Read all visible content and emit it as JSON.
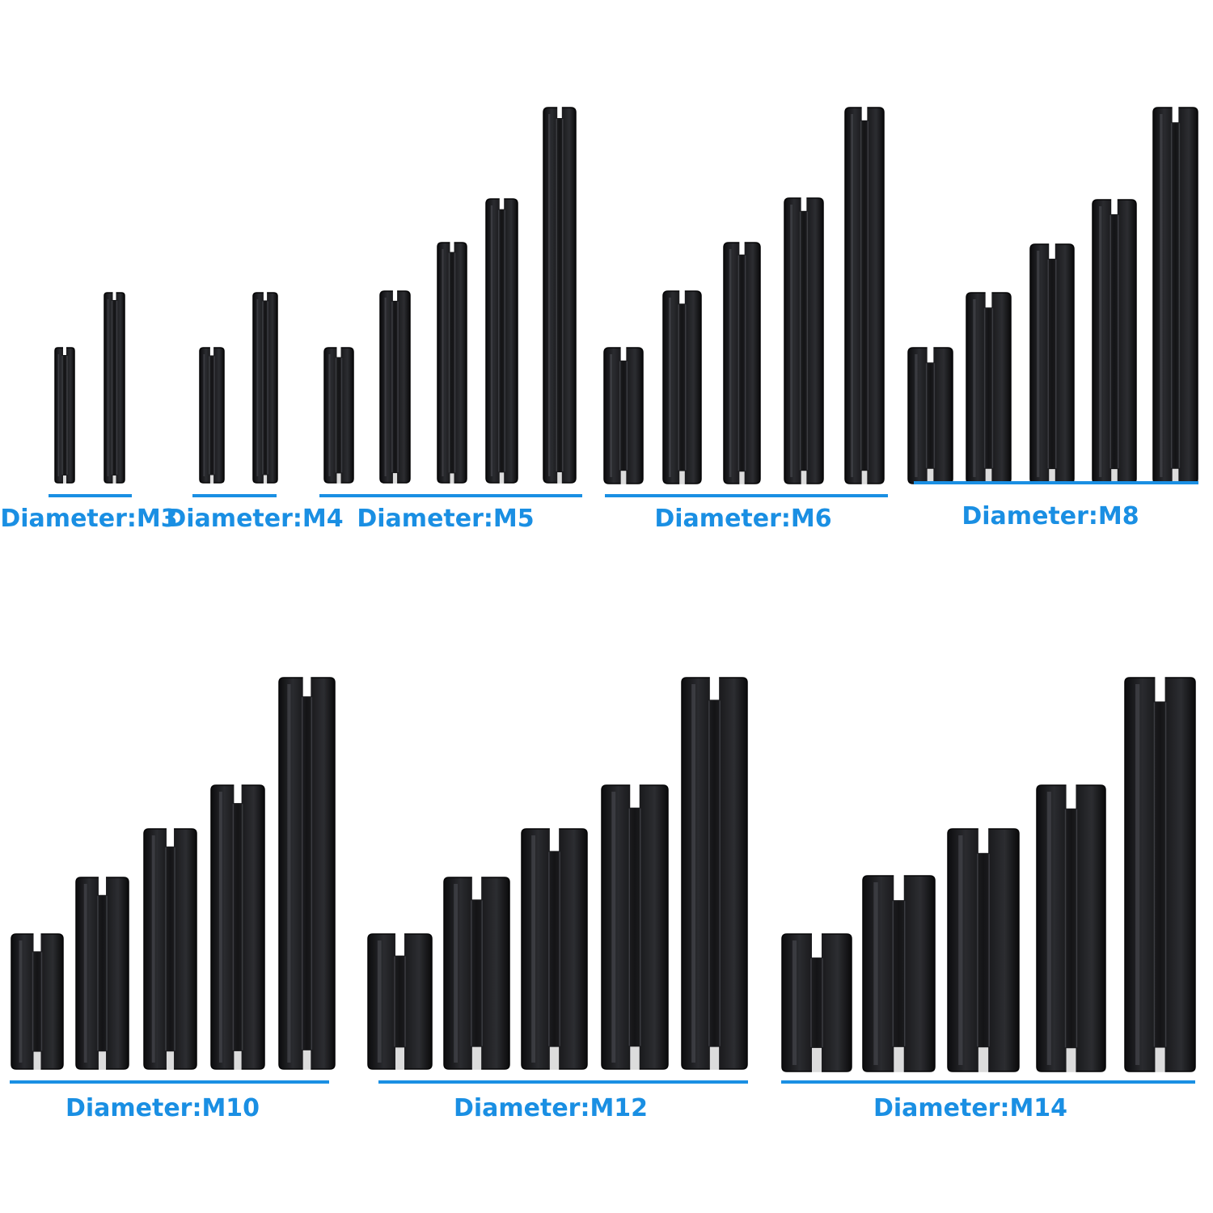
{
  "groups": [
    {
      "label": "Diameter:M3"
    },
    {
      "label": "Diameter:M4"
    },
    {
      "label": "Diameter:M5"
    },
    {
      "label": "Diameter:M6"
    },
    {
      "label": "Diameter:M8"
    },
    {
      "label": "Diameter:M10"
    },
    {
      "label": "Diameter:M12"
    },
    {
      "label": "Diameter:M14"
    }
  ]
}
